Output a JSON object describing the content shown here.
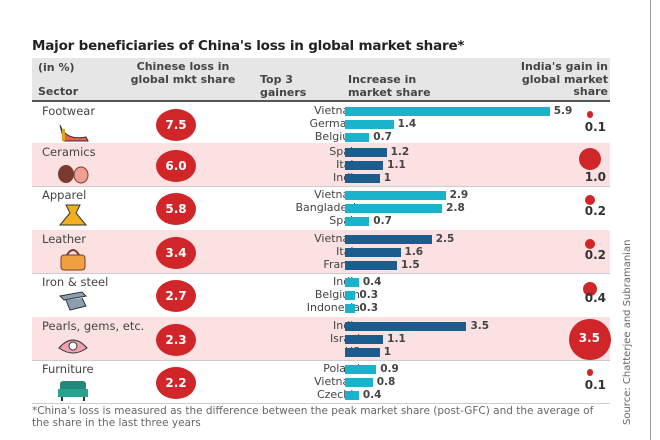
{
  "chart_data": {
    "type": "table",
    "title": "Major beneficiaries of China's loss in global market share*",
    "headers": {
      "unit": "(in %)",
      "sector": "Sector",
      "loss": "Chinese loss in global mkt share",
      "gainers": "Top 3 gainers",
      "increase": "Increase in market share",
      "india": "India's gain in global market share"
    },
    "colors": {
      "loss": "#d0262a",
      "bar_a": "#19b3cc",
      "bar_b": "#1b5d8c",
      "shade": "#fbe1e1"
    },
    "rows": [
      {
        "sector": "Footwear",
        "icon": "high-heel-icon",
        "loss": "7.5",
        "gainers": [
          {
            "country": "Vietnam",
            "value": 5.9
          },
          {
            "country": "Germany",
            "value": 1.4
          },
          {
            "country": "Belgium",
            "value": 0.7
          }
        ],
        "india": "0.1"
      },
      {
        "sector": "Ceramics",
        "icon": "pottery-icon",
        "loss": "6.0",
        "gainers": [
          {
            "country": "Spain",
            "value": 1.2
          },
          {
            "country": "Italy",
            "value": 1.1
          },
          {
            "country": "India",
            "value": 1
          }
        ],
        "india": "1.0"
      },
      {
        "sector": "Apparel",
        "icon": "dress-icon",
        "loss": "5.8",
        "gainers": [
          {
            "country": "Vietnam",
            "value": 2.9
          },
          {
            "country": "Bangladesh",
            "value": 2.8
          },
          {
            "country": "Spain",
            "value": 0.7
          }
        ],
        "india": "0.2"
      },
      {
        "sector": "Leather",
        "icon": "handbag-icon",
        "loss": "3.4",
        "gainers": [
          {
            "country": "Vietnam",
            "value": 2.5
          },
          {
            "country": "Italy",
            "value": 1.6
          },
          {
            "country": "France",
            "value": 1.5
          }
        ],
        "india": "0.2"
      },
      {
        "sector": "Iron & steel",
        "icon": "steel-beam-icon",
        "loss": "2.7",
        "gainers": [
          {
            "country": "India",
            "value": 0.4
          },
          {
            "country": "Belgium",
            "value": 0.3
          },
          {
            "country": "Indonesia",
            "value": 0.3
          }
        ],
        "india": "0.4"
      },
      {
        "sector": "Pearls, gems, etc.",
        "icon": "pearl-shell-icon",
        "loss": "2.3",
        "gainers": [
          {
            "country": "India",
            "value": 3.5
          },
          {
            "country": "Israel",
            "value": 1.1
          },
          {
            "country": "US",
            "value": 1
          }
        ],
        "india": "3.5"
      },
      {
        "sector": "Furniture",
        "icon": "sofa-icon",
        "loss": "2.2",
        "gainers": [
          {
            "country": "Poland",
            "value": 0.9
          },
          {
            "country": "Vietnam",
            "value": 0.8
          },
          {
            "country": "Czechia",
            "value": 0.4
          }
        ],
        "india": "0.1"
      }
    ],
    "footnote": "*China's loss is measured as the difference between the peak market share (post-GFC) and the average of the share in the last three years",
    "source": "Source: Chatterjee and Subramanian"
  }
}
